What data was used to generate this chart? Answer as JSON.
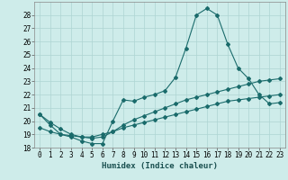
{
  "title": "",
  "xlabel": "Humidex (Indice chaleur)",
  "bg_color": "#ceecea",
  "grid_color": "#aed4d2",
  "line_color": "#1a6b6b",
  "xlim": [
    -0.5,
    23.5
  ],
  "ylim": [
    18,
    29
  ],
  "yticks": [
    18,
    19,
    20,
    21,
    22,
    23,
    24,
    25,
    26,
    27,
    28
  ],
  "xticks": [
    0,
    1,
    2,
    3,
    4,
    5,
    6,
    7,
    8,
    9,
    10,
    11,
    12,
    13,
    14,
    15,
    16,
    17,
    18,
    19,
    20,
    21,
    22,
    23
  ],
  "series1_x": [
    0,
    1,
    2,
    3,
    4,
    5,
    6,
    7,
    8,
    9,
    10,
    11,
    12,
    13,
    14,
    15,
    16,
    17,
    18,
    19,
    20,
    21,
    22,
    23
  ],
  "series1_y": [
    20.5,
    19.7,
    19.0,
    18.8,
    18.5,
    18.3,
    18.3,
    20.0,
    21.6,
    21.5,
    21.8,
    22.0,
    22.3,
    23.3,
    25.5,
    28.0,
    28.5,
    28.0,
    25.8,
    24.0,
    23.2,
    22.0,
    21.3,
    21.4
  ],
  "series2_x": [
    0,
    1,
    2,
    3,
    4,
    5,
    6,
    7,
    8,
    9,
    10,
    11,
    12,
    13,
    14,
    15,
    16,
    17,
    18,
    19,
    20,
    21,
    22,
    23
  ],
  "series2_y": [
    19.5,
    19.2,
    19.0,
    18.9,
    18.8,
    18.8,
    19.0,
    19.2,
    19.5,
    19.7,
    19.9,
    20.1,
    20.3,
    20.5,
    20.7,
    20.9,
    21.1,
    21.3,
    21.5,
    21.6,
    21.7,
    21.8,
    21.9,
    22.0
  ],
  "series3_x": [
    0,
    1,
    2,
    3,
    4,
    5,
    6,
    7,
    8,
    9,
    10,
    11,
    12,
    13,
    14,
    15,
    16,
    17,
    18,
    19,
    20,
    21,
    22,
    23
  ],
  "series3_y": [
    20.5,
    19.9,
    19.4,
    19.0,
    18.8,
    18.7,
    18.8,
    19.2,
    19.7,
    20.1,
    20.4,
    20.7,
    21.0,
    21.3,
    21.6,
    21.8,
    22.0,
    22.2,
    22.4,
    22.6,
    22.8,
    23.0,
    23.1,
    23.2
  ],
  "tick_fontsize": 5.5,
  "xlabel_fontsize": 6.5,
  "marker_size": 2.0,
  "line_width": 0.8
}
